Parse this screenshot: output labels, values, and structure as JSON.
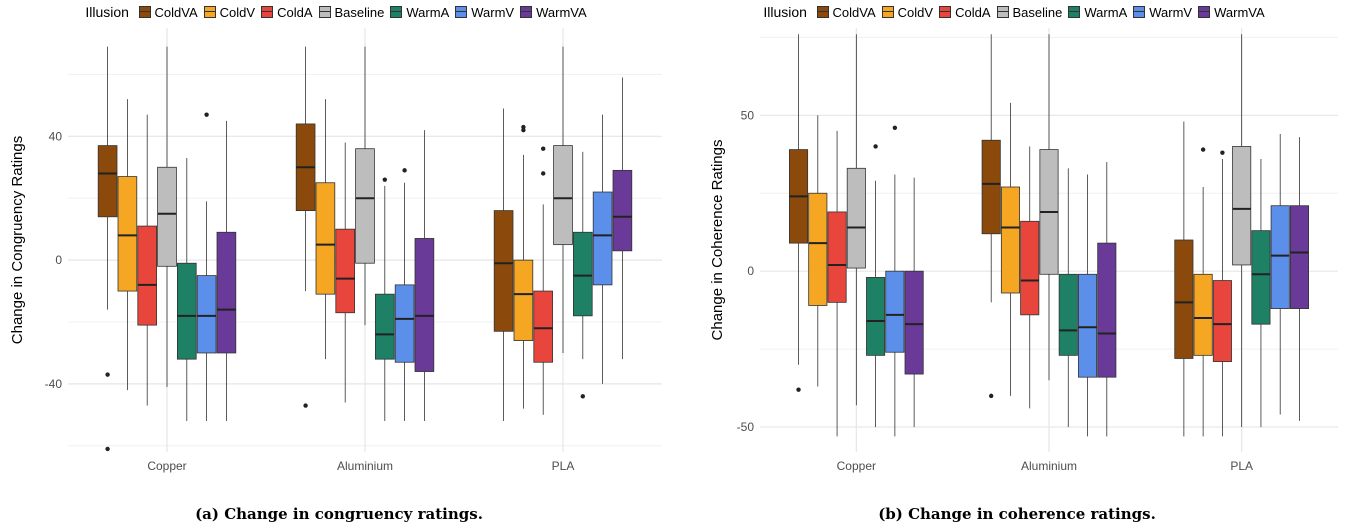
{
  "chart_data": [
    {
      "type": "boxplot",
      "caption": "(a) Change in congruency ratings.",
      "ylabel": "Change in Congruency Ratings",
      "ylim": [
        -62,
        75
      ],
      "yticks": [
        -40,
        0,
        40
      ],
      "categories": [
        "Copper",
        "Aluminium",
        "PLA"
      ],
      "legend_title": "Illusion",
      "series": [
        {
          "name": "ColdVA",
          "color": "#8B4A0B",
          "boxes": [
            {
              "min": -16,
              "q1": 14,
              "median": 28,
              "q3": 37,
              "max": 69,
              "outliers": [
                -37,
                -61
              ]
            },
            {
              "min": -10,
              "q1": 16,
              "median": 30,
              "q3": 44,
              "max": 69,
              "outliers": [
                -47
              ]
            },
            {
              "min": -52,
              "q1": -23,
              "median": -1,
              "q3": 16,
              "max": 49,
              "outliers": []
            }
          ]
        },
        {
          "name": "ColdV",
          "color": "#F5A623",
          "boxes": [
            {
              "min": -42,
              "q1": -10,
              "median": 8,
              "q3": 27,
              "max": 52,
              "outliers": []
            },
            {
              "min": -32,
              "q1": -11,
              "median": 5,
              "q3": 25,
              "max": 52,
              "outliers": []
            },
            {
              "min": -48,
              "q1": -26,
              "median": -11,
              "q3": 0,
              "max": 34,
              "outliers": [
                42,
                43
              ]
            }
          ]
        },
        {
          "name": "ColdA",
          "color": "#E8453C",
          "boxes": [
            {
              "min": -47,
              "q1": -21,
              "median": -8,
              "q3": 11,
              "max": 47,
              "outliers": []
            },
            {
              "min": -46,
              "q1": -17,
              "median": -6,
              "q3": 10,
              "max": 38,
              "outliers": []
            },
            {
              "min": -50,
              "q1": -33,
              "median": -22,
              "q3": -10,
              "max": 18,
              "outliers": [
                28,
                36
              ]
            }
          ]
        },
        {
          "name": "Baseline",
          "color": "#BDBDBD",
          "boxes": [
            {
              "min": -41,
              "q1": -2,
              "median": 15,
              "q3": 30,
              "max": 69,
              "outliers": []
            },
            {
              "min": -21,
              "q1": -1,
              "median": 20,
              "q3": 36,
              "max": 69,
              "outliers": []
            },
            {
              "min": -30,
              "q1": 5,
              "median": 20,
              "q3": 37,
              "max": 69,
              "outliers": []
            }
          ]
        },
        {
          "name": "WarmA",
          "color": "#1E8064",
          "boxes": [
            {
              "min": -52,
              "q1": -32,
              "median": -18,
              "q3": -1,
              "max": 33,
              "outliers": []
            },
            {
              "min": -52,
              "q1": -32,
              "median": -24,
              "q3": -11,
              "max": 24,
              "outliers": [
                26
              ]
            },
            {
              "min": -32,
              "q1": -18,
              "median": -5,
              "q3": 9,
              "max": 35,
              "outliers": [
                -44
              ]
            }
          ]
        },
        {
          "name": "WarmV",
          "color": "#5B8FEA",
          "boxes": [
            {
              "min": -52,
              "q1": -30,
              "median": -18,
              "q3": -5,
              "max": 19,
              "outliers": [
                47
              ]
            },
            {
              "min": -52,
              "q1": -33,
              "median": -19,
              "q3": -8,
              "max": 25,
              "outliers": [
                29
              ]
            },
            {
              "min": -40,
              "q1": -8,
              "median": 8,
              "q3": 22,
              "max": 47,
              "outliers": []
            }
          ]
        },
        {
          "name": "WarmVA",
          "color": "#6A3A98",
          "boxes": [
            {
              "min": -52,
              "q1": -30,
              "median": -16,
              "q3": 9,
              "max": 45,
              "outliers": []
            },
            {
              "min": -52,
              "q1": -36,
              "median": -18,
              "q3": 7,
              "max": 42,
              "outliers": []
            },
            {
              "min": -32,
              "q1": 3,
              "median": 14,
              "q3": 29,
              "max": 59,
              "outliers": []
            }
          ]
        }
      ]
    },
    {
      "type": "boxplot",
      "caption": "(b) Change in coherence ratings.",
      "ylabel": "Change in Coherence Ratings",
      "ylim": [
        -58,
        78
      ],
      "yticks": [
        -50,
        0,
        50
      ],
      "categories": [
        "Copper",
        "Aluminium",
        "PLA"
      ],
      "legend_title": "Illusion",
      "series": [
        {
          "name": "ColdVA",
          "color": "#8B4A0B",
          "boxes": [
            {
              "min": -30,
              "q1": 9,
              "median": 24,
              "q3": 39,
              "max": 76,
              "outliers": [
                -38
              ]
            },
            {
              "min": -10,
              "q1": 12,
              "median": 28,
              "q3": 42,
              "max": 76,
              "outliers": [
                -40
              ]
            },
            {
              "min": -53,
              "q1": -28,
              "median": -10,
              "q3": 10,
              "max": 48,
              "outliers": []
            }
          ]
        },
        {
          "name": "ColdV",
          "color": "#F5A623",
          "boxes": [
            {
              "min": -37,
              "q1": -11,
              "median": 9,
              "q3": 25,
              "max": 50,
              "outliers": []
            },
            {
              "min": -40,
              "q1": -7,
              "median": 14,
              "q3": 27,
              "max": 54,
              "outliers": []
            },
            {
              "min": -53,
              "q1": -27,
              "median": -15,
              "q3": -1,
              "max": 27,
              "outliers": [
                39
              ]
            }
          ]
        },
        {
          "name": "ColdA",
          "color": "#E8453C",
          "boxes": [
            {
              "min": -53,
              "q1": -10,
              "median": 2,
              "q3": 19,
              "max": 45,
              "outliers": []
            },
            {
              "min": -44,
              "q1": -14,
              "median": -3,
              "q3": 16,
              "max": 40,
              "outliers": []
            },
            {
              "min": -53,
              "q1": -29,
              "median": -17,
              "q3": -3,
              "max": 36,
              "outliers": [
                38
              ]
            }
          ]
        },
        {
          "name": "Baseline",
          "color": "#BDBDBD",
          "boxes": [
            {
              "min": -43,
              "q1": 1,
              "median": 14,
              "q3": 33,
              "max": 76,
              "outliers": []
            },
            {
              "min": -35,
              "q1": -1,
              "median": 19,
              "q3": 39,
              "max": 76,
              "outliers": []
            },
            {
              "min": -50,
              "q1": 2,
              "median": 20,
              "q3": 40,
              "max": 76,
              "outliers": []
            }
          ]
        },
        {
          "name": "WarmA",
          "color": "#1E8064",
          "boxes": [
            {
              "min": -50,
              "q1": -27,
              "median": -16,
              "q3": -2,
              "max": 29,
              "outliers": [
                40
              ]
            },
            {
              "min": -50,
              "q1": -27,
              "median": -19,
              "q3": -1,
              "max": 33,
              "outliers": []
            },
            {
              "min": -50,
              "q1": -17,
              "median": -1,
              "q3": 13,
              "max": 36,
              "outliers": []
            }
          ]
        },
        {
          "name": "WarmV",
          "color": "#5B8FEA",
          "boxes": [
            {
              "min": -53,
              "q1": -26,
              "median": -14,
              "q3": 0,
              "max": 31,
              "outliers": [
                46
              ]
            },
            {
              "min": -53,
              "q1": -34,
              "median": -18,
              "q3": -1,
              "max": 31,
              "outliers": []
            },
            {
              "min": -46,
              "q1": -12,
              "median": 5,
              "q3": 21,
              "max": 44,
              "outliers": []
            }
          ]
        },
        {
          "name": "WarmVA",
          "color": "#6A3A98",
          "boxes": [
            {
              "min": -50,
              "q1": -33,
              "median": -17,
              "q3": 0,
              "max": 30,
              "outliers": []
            },
            {
              "min": -53,
              "q1": -34,
              "median": -20,
              "q3": 9,
              "max": 35,
              "outliers": []
            },
            {
              "min": -48,
              "q1": -12,
              "median": 6,
              "q3": 21,
              "max": 43,
              "outliers": []
            }
          ]
        }
      ]
    }
  ]
}
